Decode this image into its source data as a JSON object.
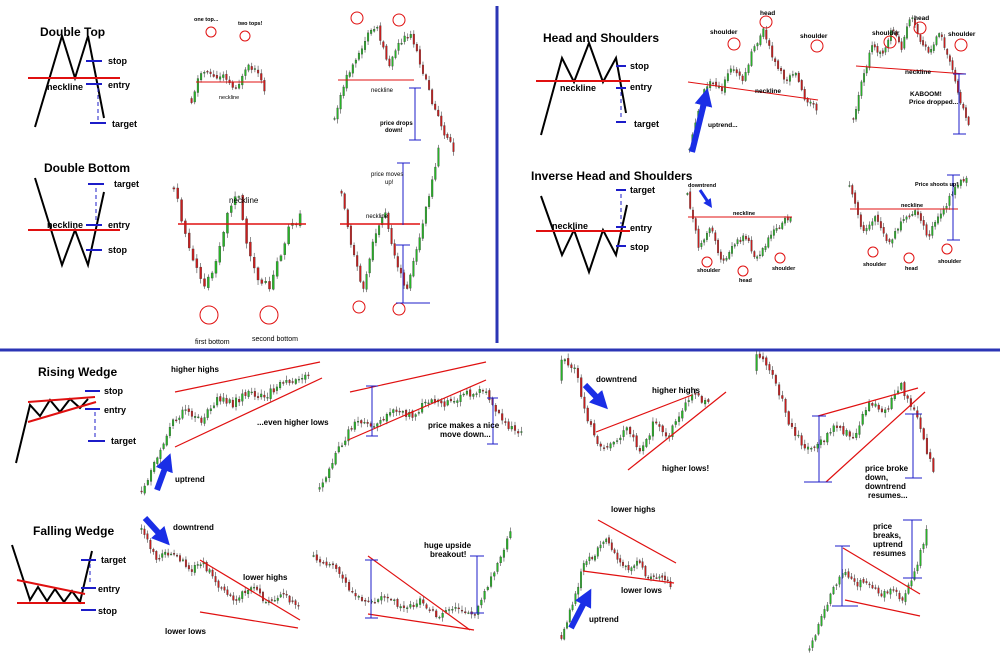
{
  "panels": {
    "double_top": {
      "title": "Double Top",
      "stop": "stop",
      "entry": "entry",
      "target": "target",
      "neckline": "neckline",
      "ex1_callouts": [
        "one top...",
        "two tops!",
        "neckline"
      ],
      "ex2_callouts": [
        "neckline",
        "price drops",
        "down!"
      ]
    },
    "double_bottom": {
      "title": "Double Bottom",
      "target": "target",
      "entry": "entry",
      "stop": "stop",
      "neckline": "neckline",
      "ex1_callouts": [
        "neckline",
        "first bottom",
        "second bottom"
      ],
      "ex2_callouts": [
        "price moves",
        "up!",
        "neckline"
      ]
    },
    "head_shoulders": {
      "title": "Head and Shoulders",
      "stop": "stop",
      "entry": "entry",
      "target": "target",
      "neckline": "neckline",
      "ex1_callouts": [
        "shoulder",
        "head",
        "shoulder",
        "neckline",
        "uptrend..."
      ],
      "ex2_callouts": [
        "shoulder",
        "head",
        "shoulder",
        "neckline",
        "KABOOM!",
        "Price dropped..."
      ]
    },
    "inverse_head_shoulders": {
      "title": "Inverse Head and Shoulders",
      "target": "target",
      "entry": "entry",
      "stop": "stop",
      "neckline": "neckline",
      "ex1_callouts": [
        "downtrend",
        "neckline",
        "shoulder",
        "head",
        "shoulder"
      ],
      "ex2_callouts": [
        "Price shoots up!",
        "neckline",
        "shoulder",
        "head",
        "shoulder"
      ]
    },
    "rising_wedge": {
      "title": "Rising Wedge",
      "stop": "stop",
      "entry": "entry",
      "target": "target",
      "ex1_callouts": [
        "higher highs",
        "...even higher lows",
        "uptrend"
      ],
      "ex2_callouts": [
        "price makes a nice",
        "move down..."
      ],
      "ex3_callouts": [
        "downtrend",
        "higher highs",
        "higher lows!"
      ],
      "ex4_callouts": [
        "price broke",
        "down,",
        "downtrend",
        "resumes..."
      ]
    },
    "falling_wedge": {
      "title": "Falling Wedge",
      "target": "target",
      "entry": "entry",
      "stop": "stop",
      "ex1_callouts": [
        "downtrend",
        "lower highs",
        "lower lows"
      ],
      "ex2_callouts": [
        "huge upside",
        "breakout!"
      ],
      "ex3_callouts": [
        "lower highs",
        "lower lows",
        "uptrend"
      ],
      "ex4_callouts": [
        "price",
        "breaks,",
        "uptrend",
        "resumes"
      ]
    }
  },
  "colors": {
    "bull_candle": "#27b427",
    "bear_candle": "#c81e1e",
    "neckline": "#e01010",
    "level_marker": "#1c1cc8",
    "divider": "#2b35b5",
    "arrow": "#1a2ee6",
    "circle": "#e01010"
  }
}
